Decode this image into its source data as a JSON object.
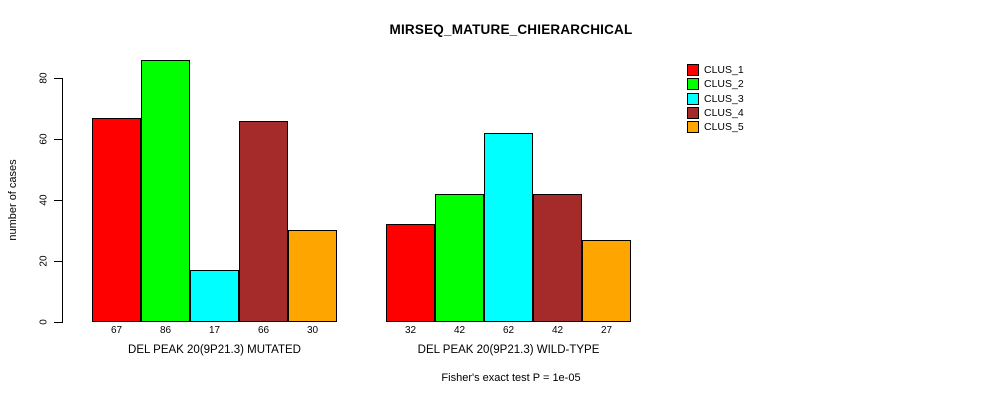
{
  "title": "MIRSEQ_MATURE_CHIERARCHICAL",
  "caption": "Fisher's exact test P = 1e-05",
  "chart_data": {
    "type": "bar",
    "title": "MIRSEQ_MATURE_CHIERARCHICAL",
    "xlabel": "",
    "ylabel": "number of cases",
    "ylim": [
      0,
      88
    ],
    "yticks": [
      0,
      20,
      40,
      60,
      80
    ],
    "grid": false,
    "legend_position": "top-right-outside-bars",
    "bar_border_color": "#000000",
    "categories": [
      "DEL PEAK 20(9P21.3) MUTATED",
      "DEL PEAK 20(9P21.3) WILD-TYPE"
    ],
    "series": [
      {
        "name": "CLUS_1",
        "color": "#FF0000",
        "values": [
          67,
          32
        ]
      },
      {
        "name": "CLUS_2",
        "color": "#00FF00",
        "values": [
          86,
          42
        ]
      },
      {
        "name": "CLUS_3",
        "color": "#00FFFF",
        "values": [
          17,
          62
        ]
      },
      {
        "name": "CLUS_4",
        "color": "#A52A2A",
        "values": [
          66,
          42
        ]
      },
      {
        "name": "CLUS_5",
        "color": "#FFA500",
        "values": [
          30,
          27
        ]
      }
    ],
    "bar_value_labels": [
      [
        67,
        86,
        17,
        66,
        30
      ],
      [
        32,
        42,
        62,
        42,
        27
      ]
    ],
    "annotation": "Fisher's exact test P = 1e-05"
  },
  "legend": {
    "items": [
      {
        "label": "CLUS_1",
        "color": "#FF0000"
      },
      {
        "label": "CLUS_2",
        "color": "#00FF00"
      },
      {
        "label": "CLUS_3",
        "color": "#00FFFF"
      },
      {
        "label": "CLUS_4",
        "color": "#A52A2A"
      },
      {
        "label": "CLUS_5",
        "color": "#FFA500"
      }
    ]
  }
}
